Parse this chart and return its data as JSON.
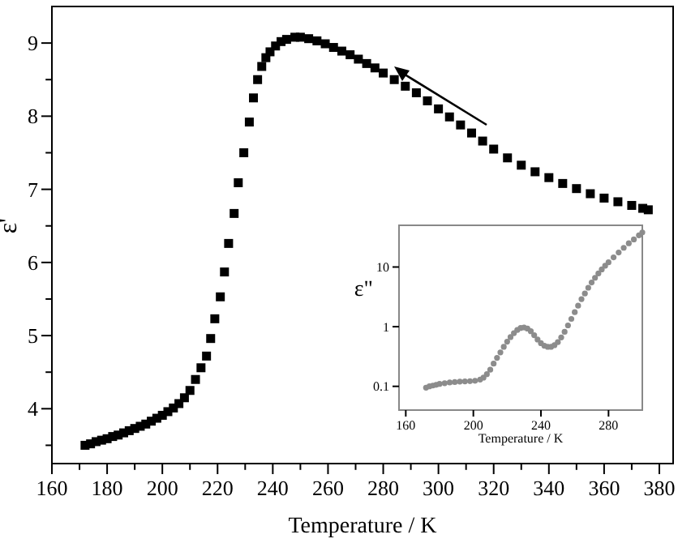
{
  "chart_data": [
    {
      "type": "scatter",
      "xlabel": "Temperature / K",
      "ylabel": "ε'",
      "marker": "square",
      "xlim": [
        160,
        385
      ],
      "ylim": [
        3.25,
        9.5
      ],
      "xticks": [
        160,
        {
          "value": 170,
          "label": null
        },
        180,
        {
          "value": 190,
          "label": null
        },
        200,
        {
          "value": 210,
          "label": null
        },
        220,
        {
          "value": 230,
          "label": null
        },
        240,
        {
          "value": 250,
          "label": null
        },
        260,
        {
          "value": 270,
          "label": null
        },
        280,
        {
          "value": 290,
          "label": null
        },
        300,
        {
          "value": 310,
          "label": null
        },
        320,
        {
          "value": 330,
          "label": null
        },
        340,
        {
          "value": 350,
          "label": null
        },
        360,
        {
          "value": 370,
          "label": null
        },
        380
      ],
      "yticks": [
        {
          "value": 3.5,
          "label": null
        },
        4,
        {
          "value": 4.5,
          "label": null
        },
        5,
        {
          "value": 5.5,
          "label": null
        },
        6,
        {
          "value": 6.5,
          "label": null
        },
        7,
        {
          "value": 7.5,
          "label": null
        },
        8,
        {
          "value": 8.5,
          "label": null
        },
        9
      ],
      "series": [
        {
          "color": "#000000",
          "x": [
            172,
            174,
            176,
            178,
            180,
            182,
            184,
            186,
            188,
            190,
            192,
            194,
            196,
            198,
            200,
            202,
            204,
            206,
            208,
            210,
            212,
            214,
            216,
            217.5,
            219,
            221,
            222.5,
            224,
            226,
            227.5,
            229.5,
            231.5,
            233,
            234.5,
            236,
            237.5,
            239,
            241,
            243,
            245,
            248,
            250,
            253,
            256,
            259,
            262,
            265,
            268,
            271,
            274,
            277,
            280,
            284,
            288,
            292,
            296,
            300,
            304,
            308,
            312,
            316,
            320,
            325,
            330,
            335,
            340,
            345,
            350,
            355,
            360,
            365,
            370,
            374,
            376
          ],
          "values": [
            3.5,
            3.52,
            3.55,
            3.57,
            3.59,
            3.62,
            3.64,
            3.67,
            3.7,
            3.73,
            3.76,
            3.79,
            3.83,
            3.87,
            3.91,
            3.96,
            4.01,
            4.07,
            4.15,
            4.25,
            4.4,
            4.56,
            4.72,
            4.96,
            5.23,
            5.53,
            5.87,
            6.26,
            6.67,
            7.09,
            7.5,
            7.92,
            8.25,
            8.5,
            8.68,
            8.8,
            8.88,
            8.96,
            9.02,
            9.05,
            9.08,
            9.08,
            9.06,
            9.03,
            8.99,
            8.94,
            8.89,
            8.84,
            8.78,
            8.72,
            8.66,
            8.59,
            8.5,
            8.41,
            8.32,
            8.21,
            8.1,
            7.99,
            7.88,
            7.77,
            7.66,
            7.55,
            7.43,
            7.33,
            7.24,
            7.16,
            7.08,
            7.01,
            6.94,
            6.88,
            6.83,
            6.78,
            6.74,
            6.72
          ]
        }
      ]
    },
    {
      "type": "scatter",
      "xlabel": "Temperature / K",
      "ylabel": "ε\"",
      "marker": "circle",
      "log": "y",
      "xlim": [
        156,
        300
      ],
      "ylim": [
        0.04,
        50
      ],
      "xticks": [
        160,
        200,
        240,
        280
      ],
      "yticks": [
        {
          "value": 0.1,
          "label": "0.1"
        },
        1,
        10
      ],
      "series": [
        {
          "color": "#8c8c8c",
          "x": [
            172,
            174,
            176,
            178,
            180,
            183,
            186,
            189,
            192,
            195,
            198,
            201,
            204,
            206,
            208,
            210,
            212,
            214,
            216,
            218,
            220,
            222,
            224,
            226,
            228,
            230,
            232,
            234,
            236,
            238,
            240,
            242,
            244,
            246,
            248,
            250,
            252,
            254,
            256,
            258,
            260,
            262,
            264,
            266,
            268,
            270,
            272,
            274,
            276,
            278,
            280,
            283,
            286,
            289,
            292,
            295,
            298,
            300
          ],
          "values": [
            0.095,
            0.1,
            0.103,
            0.106,
            0.11,
            0.113,
            0.116,
            0.118,
            0.12,
            0.121,
            0.122,
            0.124,
            0.13,
            0.14,
            0.16,
            0.19,
            0.24,
            0.3,
            0.37,
            0.46,
            0.56,
            0.67,
            0.78,
            0.88,
            0.95,
            0.97,
            0.93,
            0.84,
            0.72,
            0.61,
            0.53,
            0.48,
            0.46,
            0.46,
            0.49,
            0.55,
            0.66,
            0.82,
            1.05,
            1.35,
            1.75,
            2.25,
            2.9,
            3.6,
            4.5,
            5.5,
            6.6,
            7.8,
            9.1,
            10.5,
            12,
            14.5,
            17.5,
            21,
            25,
            29,
            34,
            38
          ]
        }
      ]
    }
  ]
}
